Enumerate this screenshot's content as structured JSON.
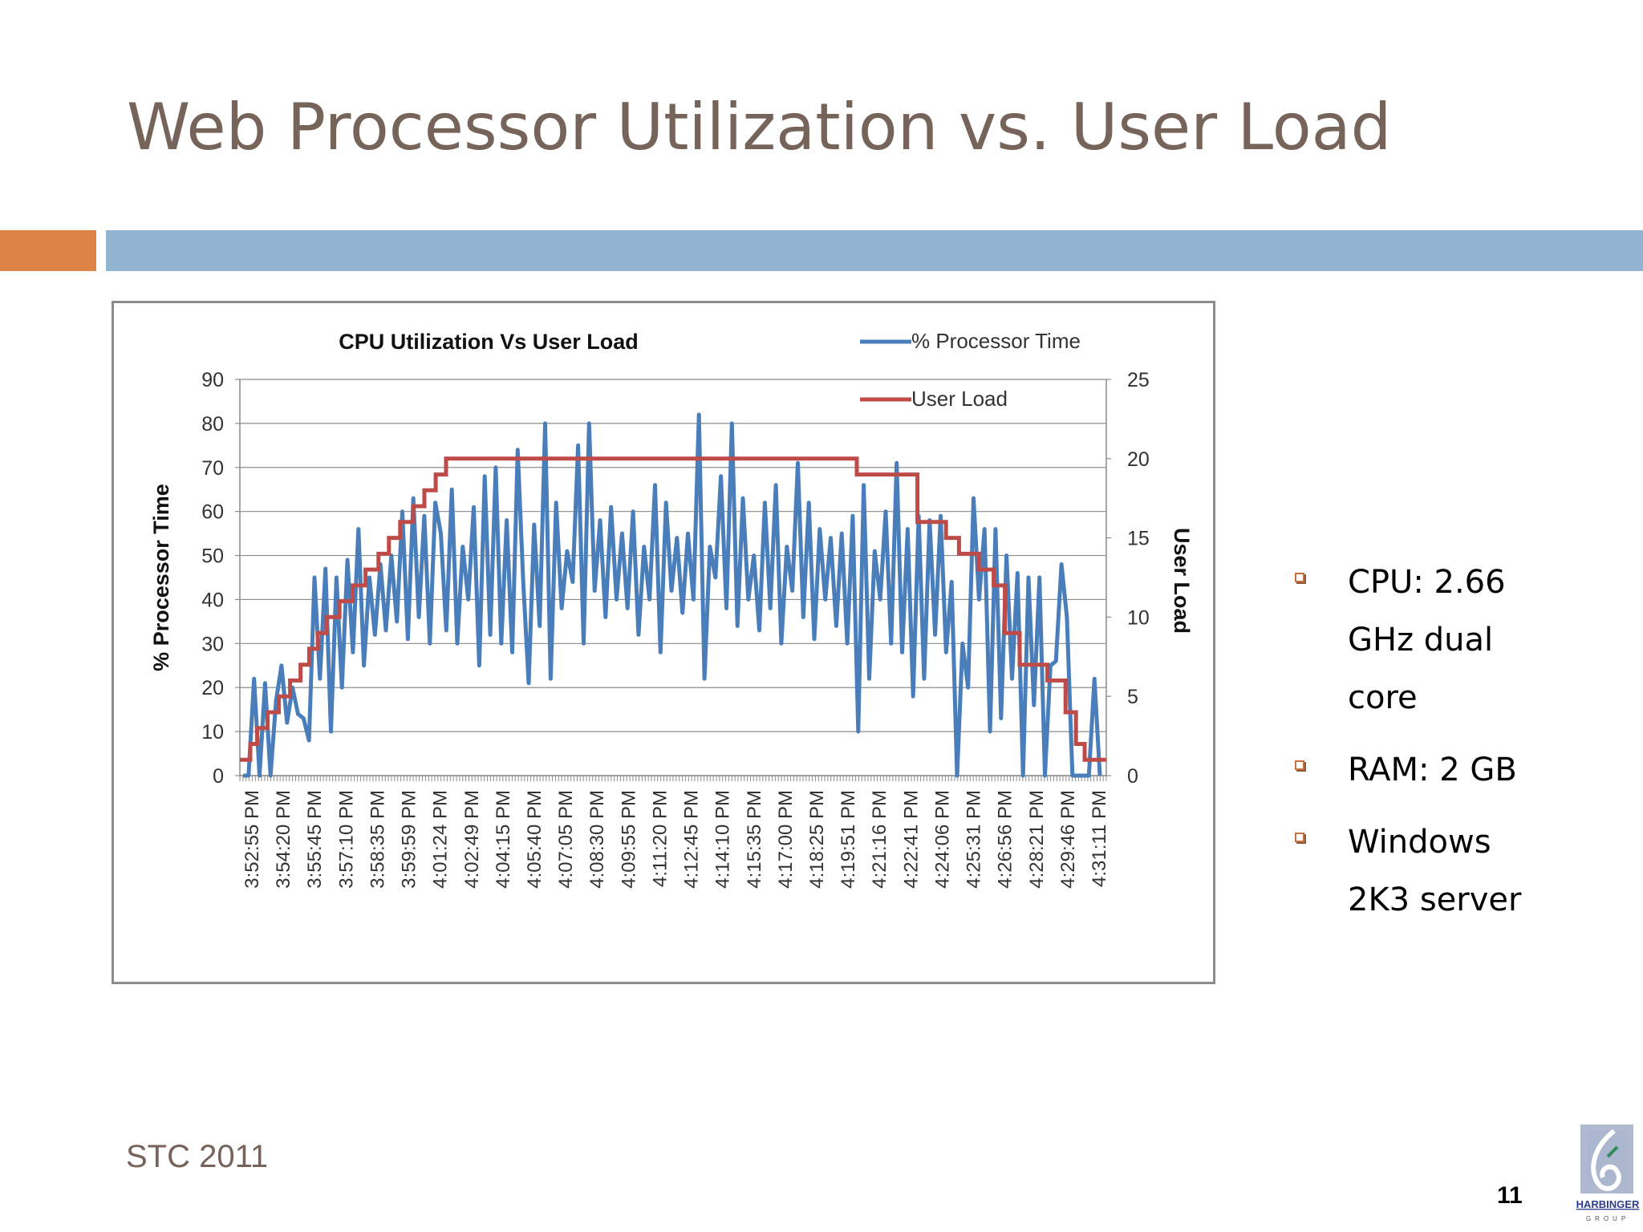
{
  "slide": {
    "title": "Web Processor Utilization vs. User Load",
    "footer": "STC 2011",
    "page_number": "11",
    "logo": {
      "text": "HARBINGER",
      "subtext": "GROUP"
    },
    "colors": {
      "title": "#76645a",
      "accent_bar": "#df8447",
      "header_bar": "#93b5d4"
    }
  },
  "bullets": [
    {
      "lines": [
        "CPU: 2.66",
        "GHz dual",
        "core"
      ]
    },
    {
      "lines": [
        "RAM: 2 GB"
      ]
    },
    {
      "lines": [
        "Windows",
        "2K3 server"
      ]
    }
  ],
  "chart_data": {
    "type": "line",
    "title": "CPU Utilization Vs User Load",
    "ylabel": "% Processor Time",
    "y2label": "User Load",
    "ylim": [
      0,
      90
    ],
    "yticks": [
      0,
      10,
      20,
      30,
      40,
      50,
      60,
      70,
      80,
      90
    ],
    "y2lim": [
      0,
      25
    ],
    "y2ticks": [
      0,
      5,
      10,
      15,
      20,
      25
    ],
    "grid": true,
    "legend_position": "top-right",
    "x_tick_labels": [
      "3:52:55 PM",
      "3:54:20 PM",
      "3:55:45 PM",
      "3:57:10 PM",
      "3:58:35 PM",
      "3:59:59 PM",
      "4:01:24 PM",
      "4:02:49 PM",
      "4:04:15 PM",
      "4:05:40 PM",
      "4:07:05 PM",
      "4:08:30 PM",
      "4:09:55 PM",
      "4:11:20 PM",
      "4:12:45 PM",
      "4:14:10 PM",
      "4:15:35 PM",
      "4:17:00 PM",
      "4:18:25 PM",
      "4:19:51 PM",
      "4:21:16 PM",
      "4:22:41 PM",
      "4:24:06 PM",
      "4:25:31 PM",
      "4:26:56 PM",
      "4:28:21 PM",
      "4:29:46 PM",
      "4:31:11 PM"
    ],
    "series": [
      {
        "name": "% Processor Time",
        "axis": "left",
        "color": "#4a7ebb",
        "values": [
          0,
          0,
          22,
          0,
          21,
          0,
          17,
          25,
          12,
          20,
          14,
          13,
          8,
          45,
          22,
          47,
          10,
          45,
          20,
          49,
          28,
          56,
          25,
          45,
          32,
          48,
          33,
          50,
          35,
          60,
          31,
          63,
          36,
          59,
          30,
          62,
          55,
          33,
          65,
          30,
          52,
          40,
          61,
          25,
          68,
          32,
          70,
          30,
          58,
          28,
          74,
          44,
          21,
          57,
          34,
          80,
          22,
          62,
          38,
          51,
          44,
          75,
          30,
          80,
          42,
          58,
          36,
          61,
          40,
          55,
          38,
          60,
          32,
          52,
          40,
          66,
          28,
          62,
          42,
          54,
          37,
          55,
          40,
          82,
          22,
          52,
          45,
          68,
          38,
          80,
          34,
          63,
          40,
          50,
          33,
          62,
          38,
          66,
          30,
          52,
          42,
          71,
          36,
          62,
          31,
          56,
          40,
          54,
          34,
          55,
          30,
          59,
          10,
          66,
          22,
          51,
          40,
          60,
          30,
          71,
          28,
          56,
          18,
          59,
          22,
          58,
          32,
          59,
          28,
          44,
          0,
          30,
          20,
          63,
          40,
          56,
          10,
          56,
          13,
          50,
          22,
          46,
          0,
          45,
          16,
          45,
          0,
          25,
          26,
          48,
          36,
          0,
          0,
          0,
          0,
          22,
          0
        ],
        "series_index_note": ""
      },
      {
        "name": "User Load",
        "axis": "right",
        "color": "#be4b48",
        "step_times_fraction": [
          0,
          0.012,
          0.02,
          0.032,
          0.045,
          0.058,
          0.07,
          0.08,
          0.09,
          0.1,
          0.115,
          0.13,
          0.145,
          0.16,
          0.172,
          0.185,
          0.2,
          0.213,
          0.226,
          0.238,
          0.248,
          0.26,
          0.7,
          0.712,
          0.77,
          0.782,
          0.8,
          0.815,
          0.83,
          0.853,
          0.87,
          0.883,
          0.9,
          0.932,
          0.953,
          0.965,
          0.975,
          0.982,
          1.0
        ],
        "values": [
          1,
          2,
          3,
          4,
          5,
          6,
          7,
          8,
          9,
          10,
          11,
          12,
          13,
          14,
          15,
          16,
          17,
          18,
          19,
          20,
          20,
          20,
          20,
          19,
          19,
          16,
          16,
          15,
          14,
          13,
          12,
          9,
          7,
          6,
          4,
          2,
          1,
          1,
          1
        ]
      }
    ]
  }
}
